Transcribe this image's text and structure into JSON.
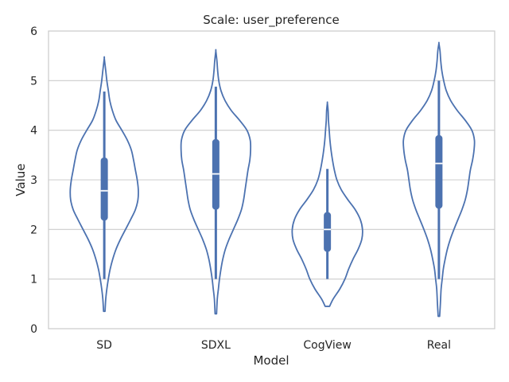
{
  "chart_data": {
    "type": "violin",
    "title": "Scale: user_preference",
    "xlabel": "Model",
    "ylabel": "Value",
    "ylim": [
      0,
      6
    ],
    "yticks": [
      0,
      1,
      2,
      3,
      4,
      5,
      6
    ],
    "grid": true,
    "color": "#4c72b0",
    "categories": [
      "SD",
      "SDXL",
      "CogView",
      "Real"
    ],
    "series": [
      {
        "category": "SD",
        "range": [
          0.35,
          5.45
        ],
        "whisker": [
          1.0,
          4.78
        ],
        "q1": 2.18,
        "median": 2.78,
        "q3": 3.45,
        "profile": [
          [
            0.35,
            0.02
          ],
          [
            0.6,
            0.04
          ],
          [
            0.8,
            0.07
          ],
          [
            1.0,
            0.11
          ],
          [
            1.2,
            0.16
          ],
          [
            1.4,
            0.23
          ],
          [
            1.6,
            0.32
          ],
          [
            1.8,
            0.44
          ],
          [
            2.0,
            0.58
          ],
          [
            2.2,
            0.72
          ],
          [
            2.4,
            0.85
          ],
          [
            2.6,
            0.92
          ],
          [
            2.8,
            0.93
          ],
          [
            3.0,
            0.9
          ],
          [
            3.2,
            0.85
          ],
          [
            3.4,
            0.8
          ],
          [
            3.6,
            0.74
          ],
          [
            3.8,
            0.63
          ],
          [
            4.0,
            0.48
          ],
          [
            4.2,
            0.32
          ],
          [
            4.4,
            0.22
          ],
          [
            4.6,
            0.15
          ],
          [
            4.8,
            0.11
          ],
          [
            5.0,
            0.07
          ],
          [
            5.2,
            0.04
          ],
          [
            5.45,
            0.0
          ]
        ]
      },
      {
        "category": "SDXL",
        "range": [
          0.3,
          5.6
        ],
        "whisker": [
          1.0,
          4.88
        ],
        "q1": 2.4,
        "median": 3.12,
        "q3": 3.82,
        "profile": [
          [
            0.3,
            0.02
          ],
          [
            0.6,
            0.04
          ],
          [
            0.8,
            0.07
          ],
          [
            1.0,
            0.1
          ],
          [
            1.2,
            0.14
          ],
          [
            1.4,
            0.19
          ],
          [
            1.6,
            0.26
          ],
          [
            1.8,
            0.36
          ],
          [
            2.0,
            0.48
          ],
          [
            2.2,
            0.6
          ],
          [
            2.4,
            0.7
          ],
          [
            2.6,
            0.76
          ],
          [
            2.8,
            0.8
          ],
          [
            3.0,
            0.84
          ],
          [
            3.2,
            0.88
          ],
          [
            3.4,
            0.93
          ],
          [
            3.6,
            0.95
          ],
          [
            3.8,
            0.94
          ],
          [
            4.0,
            0.85
          ],
          [
            4.2,
            0.65
          ],
          [
            4.4,
            0.42
          ],
          [
            4.6,
            0.25
          ],
          [
            4.8,
            0.14
          ],
          [
            5.0,
            0.08
          ],
          [
            5.2,
            0.05
          ],
          [
            5.4,
            0.03
          ],
          [
            5.6,
            0.0
          ]
        ]
      },
      {
        "category": "CogView",
        "range": [
          0.45,
          4.55
        ],
        "whisker": [
          1.0,
          3.22
        ],
        "q1": 1.55,
        "median": 2.0,
        "q3": 2.35,
        "profile": [
          [
            0.45,
            0.06
          ],
          [
            0.6,
            0.16
          ],
          [
            0.8,
            0.34
          ],
          [
            1.0,
            0.48
          ],
          [
            1.2,
            0.58
          ],
          [
            1.4,
            0.7
          ],
          [
            1.6,
            0.84
          ],
          [
            1.8,
            0.94
          ],
          [
            2.0,
            0.96
          ],
          [
            2.2,
            0.9
          ],
          [
            2.4,
            0.76
          ],
          [
            2.6,
            0.56
          ],
          [
            2.8,
            0.38
          ],
          [
            3.0,
            0.26
          ],
          [
            3.2,
            0.19
          ],
          [
            3.4,
            0.14
          ],
          [
            3.6,
            0.1
          ],
          [
            3.8,
            0.07
          ],
          [
            4.0,
            0.05
          ],
          [
            4.2,
            0.03
          ],
          [
            4.4,
            0.02
          ],
          [
            4.55,
            0.0
          ]
        ]
      },
      {
        "category": "Real",
        "range": [
          0.25,
          5.75
        ],
        "whisker": [
          1.0,
          5.0
        ],
        "q1": 2.42,
        "median": 3.33,
        "q3": 3.9,
        "profile": [
          [
            0.25,
            0.02
          ],
          [
            0.5,
            0.04
          ],
          [
            0.8,
            0.06
          ],
          [
            1.0,
            0.09
          ],
          [
            1.2,
            0.12
          ],
          [
            1.4,
            0.17
          ],
          [
            1.6,
            0.23
          ],
          [
            1.8,
            0.31
          ],
          [
            2.0,
            0.41
          ],
          [
            2.2,
            0.52
          ],
          [
            2.4,
            0.63
          ],
          [
            2.6,
            0.72
          ],
          [
            2.8,
            0.78
          ],
          [
            3.0,
            0.82
          ],
          [
            3.2,
            0.86
          ],
          [
            3.4,
            0.92
          ],
          [
            3.6,
            0.96
          ],
          [
            3.8,
            0.97
          ],
          [
            4.0,
            0.9
          ],
          [
            4.2,
            0.72
          ],
          [
            4.4,
            0.5
          ],
          [
            4.6,
            0.32
          ],
          [
            4.8,
            0.2
          ],
          [
            5.0,
            0.13
          ],
          [
            5.2,
            0.08
          ],
          [
            5.4,
            0.05
          ],
          [
            5.6,
            0.03
          ],
          [
            5.75,
            0.0
          ]
        ]
      }
    ]
  }
}
